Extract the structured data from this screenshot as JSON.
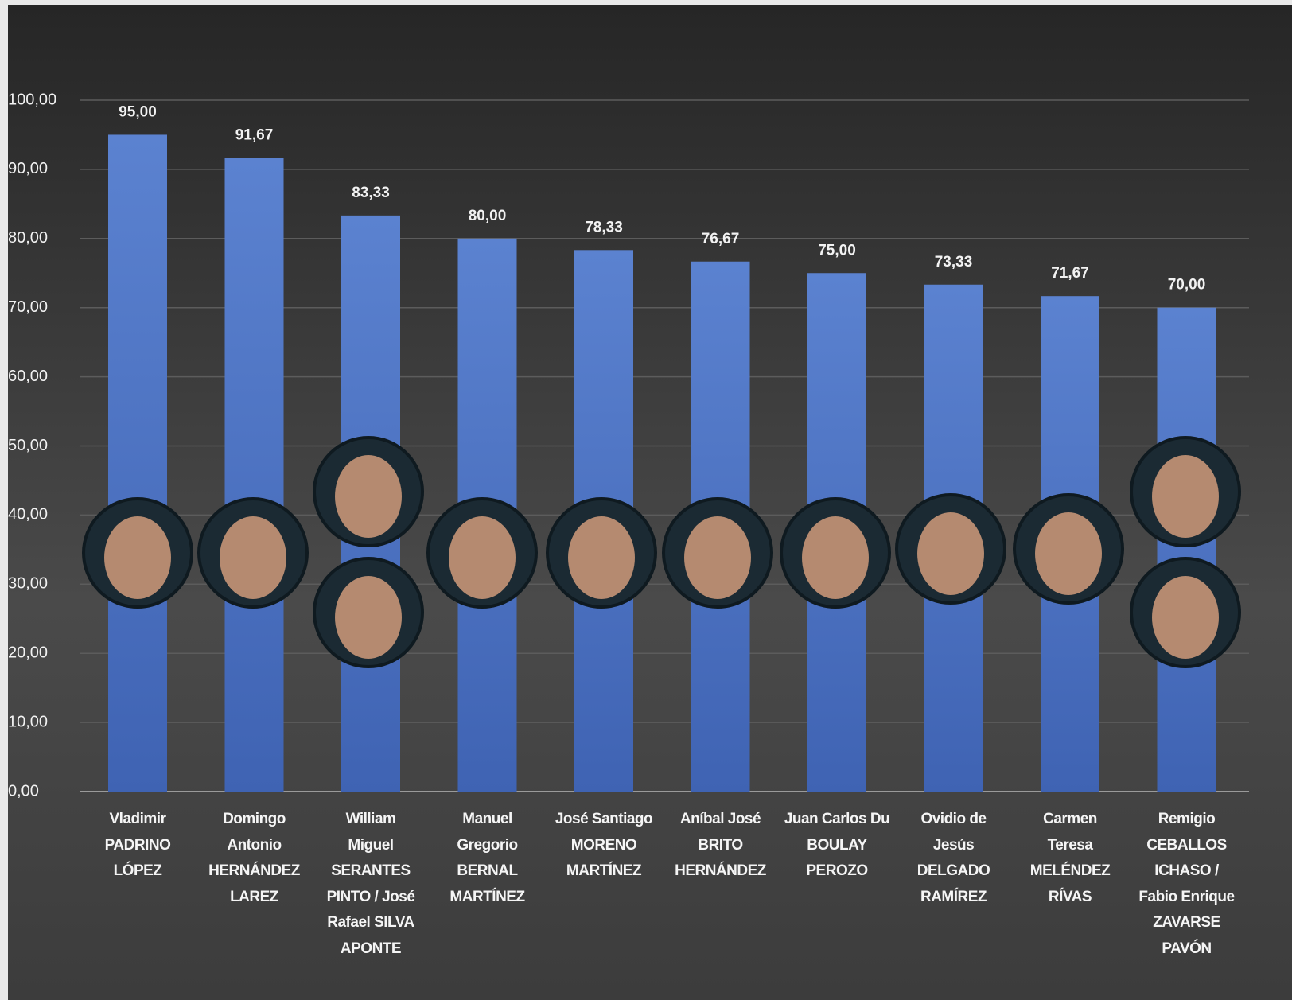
{
  "chart_data": {
    "type": "bar",
    "categories": [
      "Vladimir\nPADRINO\nLÓPEZ",
      "Domingo\nAntonio\nHERNÁNDEZ\nLAREZ",
      "William\nMiguel\nSERANTES\nPINTO / José\nRafael SILVA\nAPONTE",
      "Manuel\nGregorio\nBERNAL\nMARTÍNEZ",
      "José Santiago\nMORENO\nMARTÍNEZ",
      "Aníbal José\nBRITO\nHERNÁNDEZ",
      "Juan Carlos Du\nBOULAY\nPEROZO",
      "Ovidio de\nJesús\nDELGADO\nRAMÍREZ",
      "Carmen\nTeresa\nMELÉNDEZ\nRÍVAS",
      "Remigio\nCEBALLOS\nICHASO /\nFabio Enrique\nZAVARSE\nPAVÓN"
    ],
    "values": [
      95.0,
      91.67,
      83.33,
      80.0,
      78.33,
      76.67,
      75.0,
      73.33,
      71.67,
      70.0
    ],
    "value_labels": [
      "95,00",
      "91,67",
      "83,33",
      "80,00",
      "78,33",
      "76,67",
      "75,00",
      "73,33",
      "71,67",
      "70,00"
    ],
    "color": "#4a72c4",
    "ylim": [
      0,
      100
    ],
    "yticks": [
      {
        "value": 0,
        "label": "0,00"
      },
      {
        "value": 10,
        "label": "10,00"
      },
      {
        "value": 20,
        "label": "20,00"
      },
      {
        "value": 30,
        "label": "30,00"
      },
      {
        "value": 40,
        "label": "40,00"
      },
      {
        "value": 50,
        "label": "50,00"
      },
      {
        "value": 60,
        "label": "60,00"
      },
      {
        "value": 70,
        "label": "70,00"
      },
      {
        "value": 80,
        "label": "80,00"
      },
      {
        "value": 90,
        "label": "90,00"
      },
      {
        "value": 100,
        "label": "100,00"
      }
    ],
    "grid": true
  }
}
